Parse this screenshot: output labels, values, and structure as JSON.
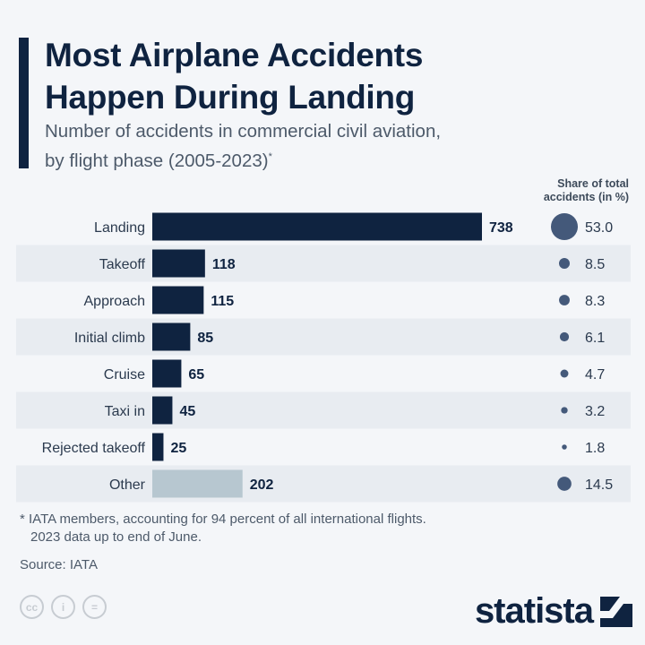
{
  "title_line1": "Most Airplane Accidents",
  "title_line2": "Happen During Landing",
  "subtitle_line1": "Number of accidents in commercial civil aviation,",
  "subtitle_line2": "by flight phase (2005-2023)",
  "subtitle_mark": "*",
  "share_header_line1": "Share of total",
  "share_header_line2": "accidents (in %)",
  "footnote_line1": "* IATA members, accounting for 94 percent of all international flights.",
  "footnote_line2": "2023 data up to end of June.",
  "source": "Source: IATA",
  "license_icons": [
    "cc",
    "i",
    "="
  ],
  "brand": "statista",
  "colors": {
    "bar": "#0f2340",
    "other_bar": "#b7c7d0",
    "circle": "#44597a",
    "stripe": "#e8ecf1"
  },
  "chart_data": {
    "type": "bar",
    "orientation": "horizontal",
    "categories": [
      "Landing",
      "Takeoff",
      "Approach",
      "Initial climb",
      "Cruise",
      "Taxi in",
      "Rejected takeoff",
      "Other"
    ],
    "values": [
      738,
      118,
      115,
      85,
      65,
      45,
      25,
      202
    ],
    "share_percent": [
      "53.0",
      "8.5",
      "8.3",
      "6.1",
      "4.7",
      "3.2",
      "1.8",
      "14.5"
    ],
    "title": "Most Airplane Accidents Happen During Landing"
  }
}
